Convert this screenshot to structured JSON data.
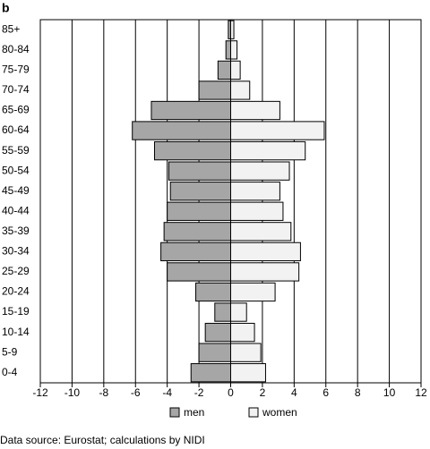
{
  "panel_label": "b",
  "chart_data": {
    "type": "bar",
    "orientation": "horizontal",
    "categories": [
      "0-4",
      "5-9",
      "10-14",
      "15-19",
      "20-24",
      "25-29",
      "30-34",
      "35-39",
      "40-44",
      "45-49",
      "50-54",
      "55-59",
      "60-64",
      "65-69",
      "70-74",
      "75-79",
      "80-84",
      "85+"
    ],
    "series": [
      {
        "name": "men",
        "color": "#a6a6a6",
        "values": [
          -2.5,
          -2.0,
          -1.6,
          -1.0,
          -2.2,
          -4.0,
          -4.4,
          -4.2,
          -4.0,
          -3.8,
          -3.9,
          -4.8,
          -6.2,
          -5.0,
          -2.0,
          -0.8,
          -0.3,
          -0.15
        ]
      },
      {
        "name": "women",
        "color": "#f2f2f2",
        "values": [
          2.2,
          1.9,
          1.5,
          1.0,
          2.8,
          4.3,
          4.4,
          3.8,
          3.3,
          3.1,
          3.7,
          4.7,
          5.9,
          3.1,
          1.2,
          0.6,
          0.4,
          0.2
        ]
      }
    ],
    "xlim": [
      -12,
      12
    ],
    "xticks": [
      -12,
      -10,
      -8,
      -6,
      -4,
      -2,
      0,
      2,
      4,
      6,
      8,
      10,
      12
    ],
    "grid": true
  },
  "source": "Data source: Eurostat; calculations by NIDI"
}
